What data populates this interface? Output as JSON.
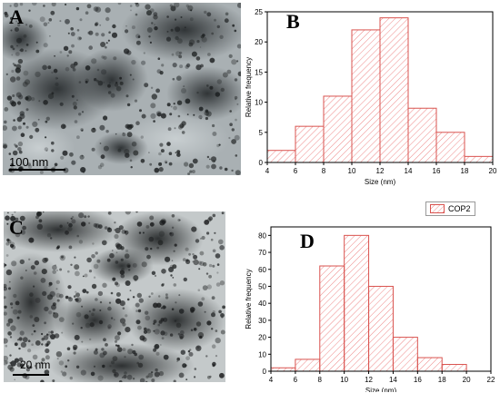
{
  "panels": {
    "a": {
      "letter": "A",
      "scale_label": "100 nm"
    },
    "b": {
      "letter": "B"
    },
    "c": {
      "letter": "C",
      "scale_label": "20 nm"
    },
    "d": {
      "letter": "D"
    }
  },
  "legend": {
    "label": "COP2"
  },
  "colors": {
    "bar_stroke": "#d9534f",
    "hatch": "#e88"
  },
  "chart_data": [
    {
      "type": "bar",
      "panel": "B",
      "x": [
        5,
        7,
        9,
        11,
        13,
        15,
        17,
        19
      ],
      "bin_width": 2,
      "values": [
        2,
        6,
        11,
        22,
        24,
        9,
        5,
        1
      ],
      "xlabel": "Size (nm)",
      "ylabel": "Relative frequency",
      "xlim": [
        4,
        20
      ],
      "ylim": [
        0,
        25
      ],
      "xticks": [
        4,
        6,
        8,
        10,
        12,
        14,
        16,
        18,
        20
      ],
      "yticks": [
        0,
        5,
        10,
        15,
        20,
        25
      ],
      "grid": false
    },
    {
      "type": "bar",
      "panel": "D",
      "x": [
        5,
        7,
        9,
        11,
        13,
        15,
        17,
        19
      ],
      "bin_width": 2,
      "values": [
        2,
        7,
        62,
        80,
        50,
        20,
        8,
        4
      ],
      "xlabel": "Size (nm)",
      "ylabel": "Relative frequency",
      "xlim": [
        4,
        22
      ],
      "ylim": [
        0,
        85
      ],
      "xticks": [
        4,
        6,
        8,
        10,
        12,
        14,
        16,
        18,
        20,
        22
      ],
      "yticks": [
        0,
        10,
        20,
        30,
        40,
        50,
        60,
        70,
        80
      ],
      "grid": false
    }
  ]
}
